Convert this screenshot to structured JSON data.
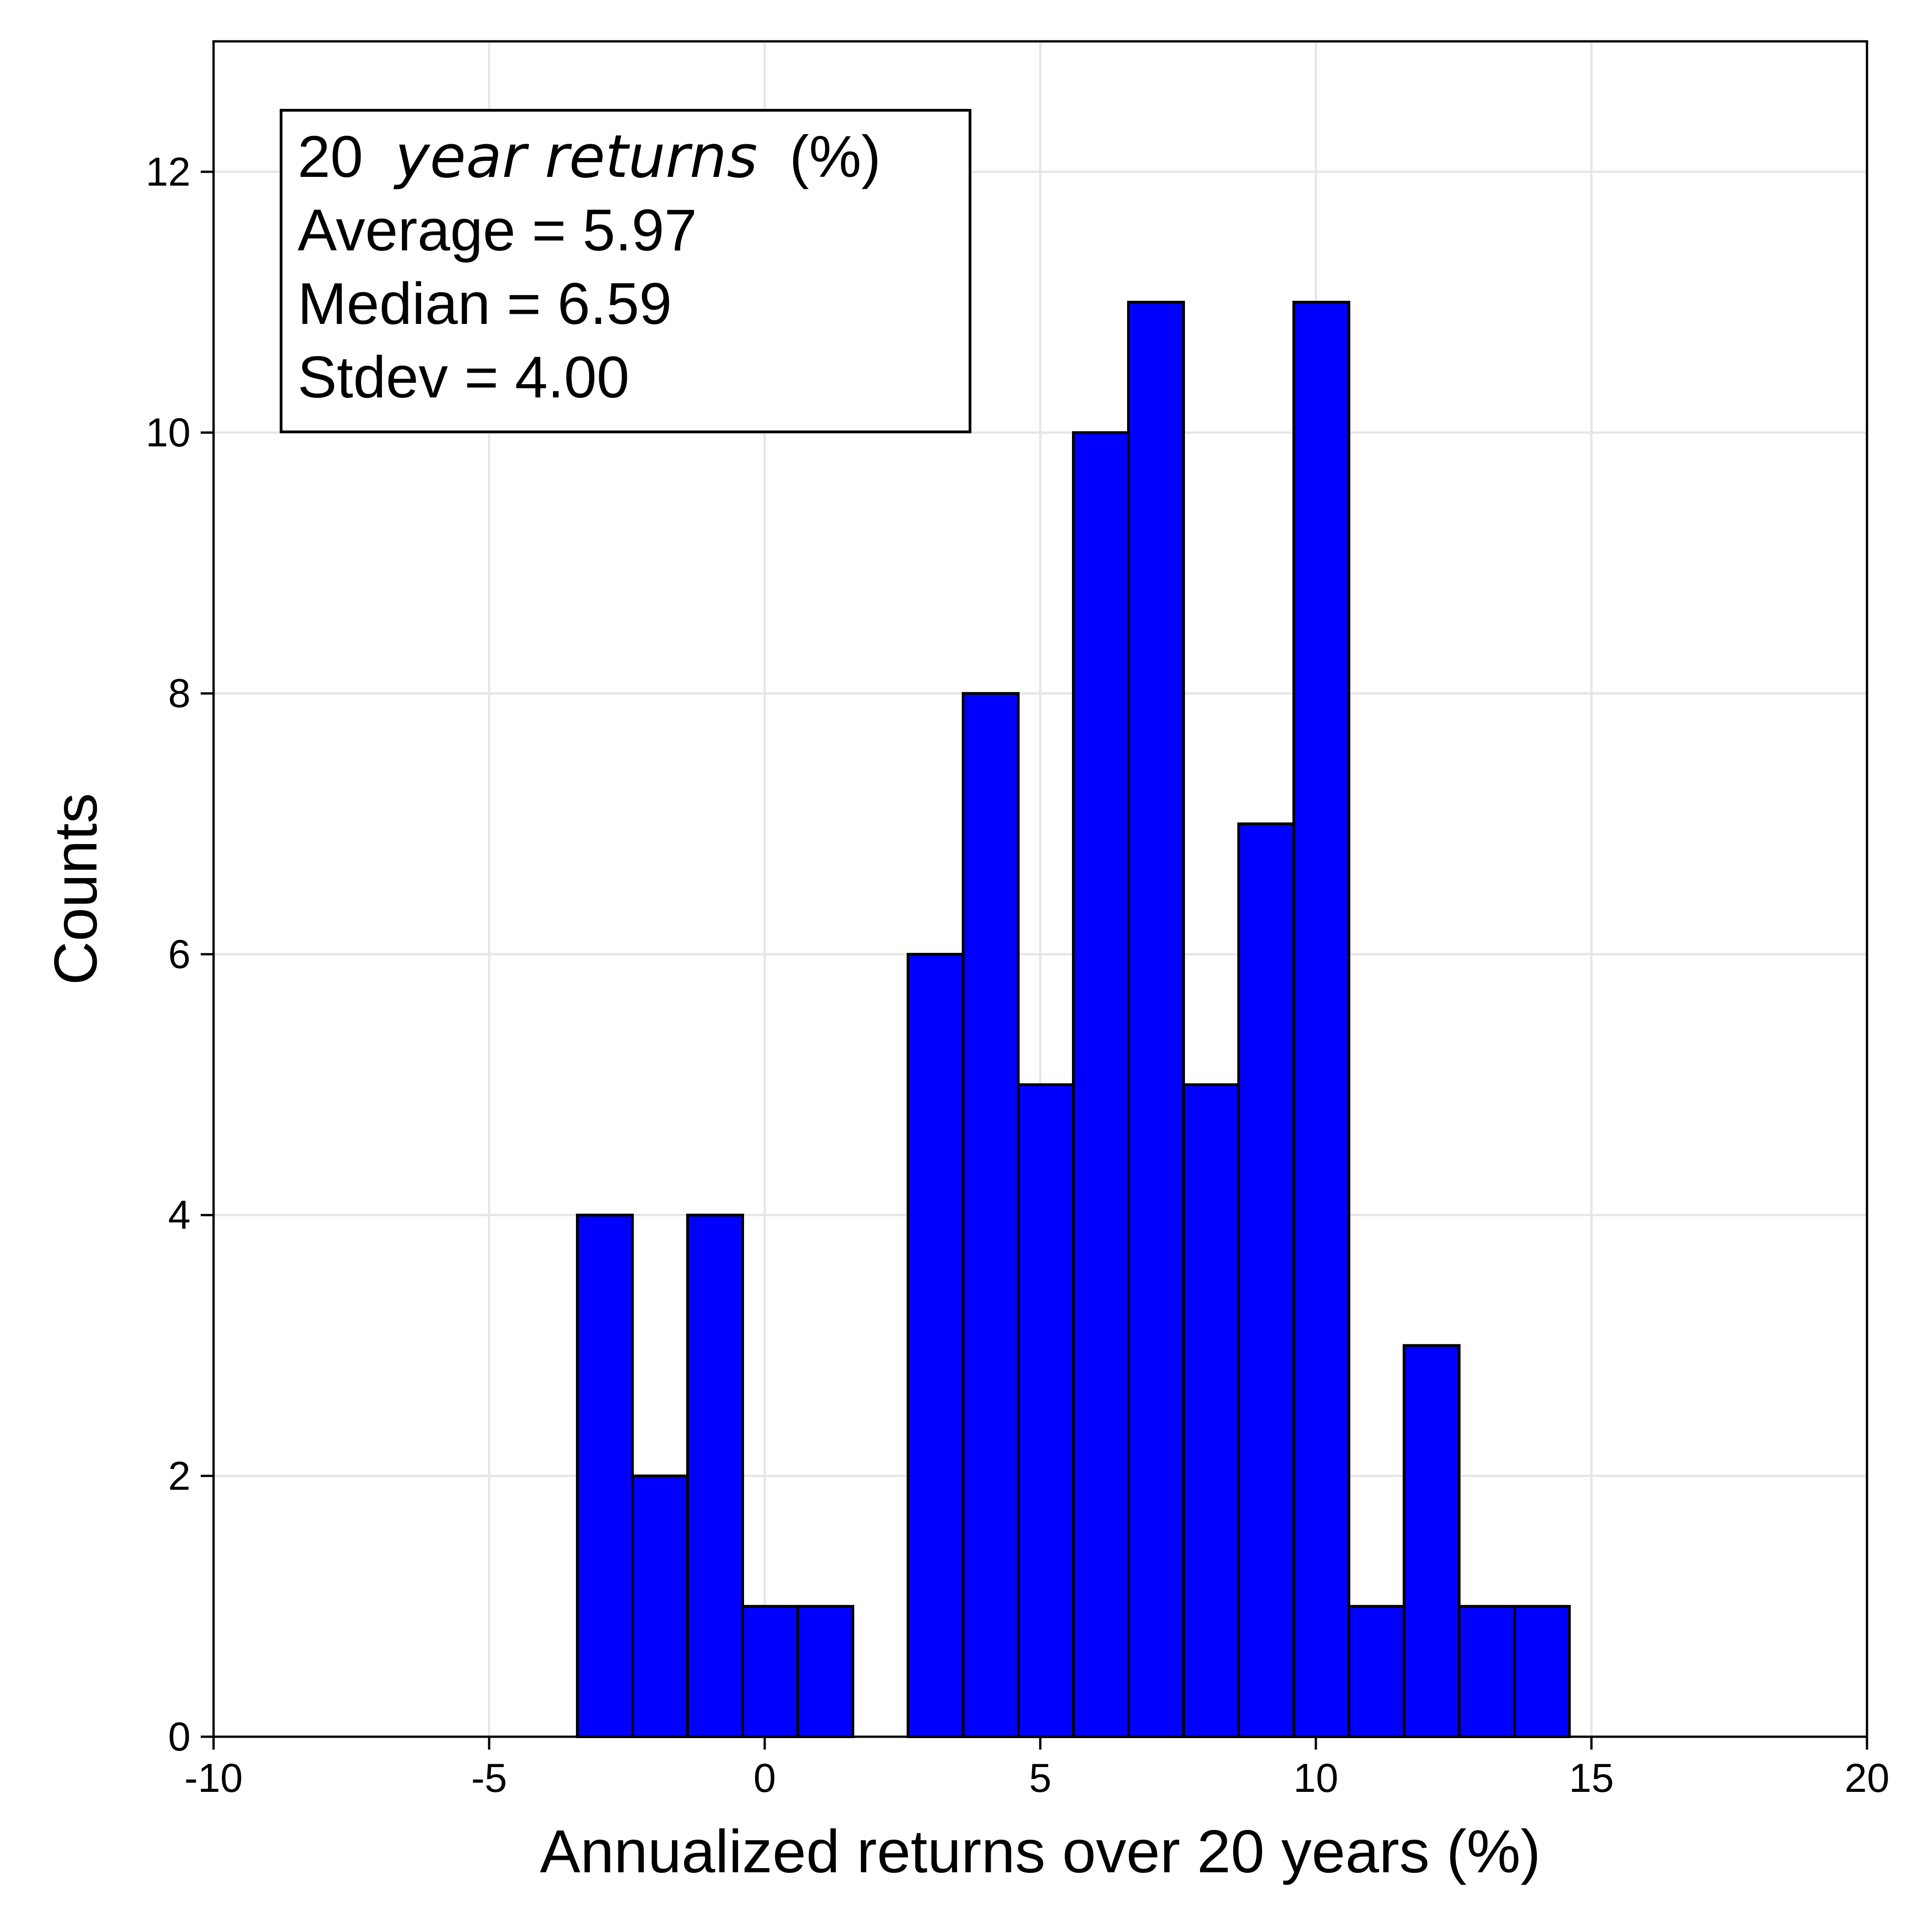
{
  "chart_data": {
    "type": "bar",
    "subtype": "histogram",
    "xlabel": "Annualized returns over 20 years (%)",
    "ylabel": "Counts",
    "xlim": [
      -10,
      20
    ],
    "ylim": [
      0,
      13
    ],
    "xticks": [
      -10,
      -5,
      0,
      5,
      10,
      15,
      20
    ],
    "yticks": [
      0,
      2,
      4,
      6,
      8,
      10,
      12
    ],
    "xtick_labels": [
      "-10",
      "-5",
      "0",
      "5",
      "10",
      "15",
      "20"
    ],
    "ytick_labels": [
      "0",
      "2",
      "4",
      "6",
      "8",
      "10",
      "12"
    ],
    "grid": true,
    "bin_width": 1,
    "bins": [
      {
        "start": -3.4,
        "end": -2.4,
        "count": 4
      },
      {
        "start": -2.4,
        "end": -1.4,
        "count": 2
      },
      {
        "start": -1.4,
        "end": -0.4,
        "count": 4
      },
      {
        "start": -0.4,
        "end": 0.6,
        "count": 1
      },
      {
        "start": 0.6,
        "end": 1.6,
        "count": 1
      },
      {
        "start": 1.6,
        "end": 2.6,
        "count": 0
      },
      {
        "start": 2.6,
        "end": 3.6,
        "count": 6
      },
      {
        "start": 3.6,
        "end": 4.6,
        "count": 8
      },
      {
        "start": 4.6,
        "end": 5.6,
        "count": 5
      },
      {
        "start": 5.6,
        "end": 6.6,
        "count": 10
      },
      {
        "start": 6.6,
        "end": 7.6,
        "count": 11
      },
      {
        "start": 7.6,
        "end": 8.6,
        "count": 5
      },
      {
        "start": 8.6,
        "end": 9.6,
        "count": 7
      },
      {
        "start": 9.6,
        "end": 10.6,
        "count": 11
      },
      {
        "start": 10.6,
        "end": 11.6,
        "count": 1
      },
      {
        "start": 11.6,
        "end": 12.6,
        "count": 3
      },
      {
        "start": 12.6,
        "end": 13.6,
        "count": 1
      },
      {
        "start": 13.6,
        "end": 14.6,
        "count": 1
      }
    ],
    "bar_color": "#0000ff",
    "bar_edge_color": "#000000",
    "stats_box": {
      "title_number": "20",
      "title_italic": "year returns",
      "title_suffix": "(%)",
      "average_label": "Average = 5.97",
      "median_label": "Median = 6.59",
      "stdev_label": "Stdev = 4.00",
      "placement": "top-left"
    }
  }
}
